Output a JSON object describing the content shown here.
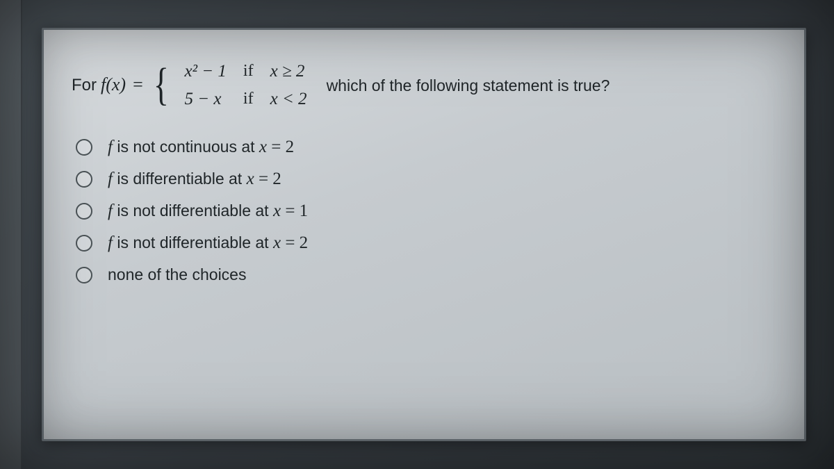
{
  "question": {
    "for_label": "For",
    "func": "f(x)",
    "equals": "=",
    "pieces": [
      {
        "expr": "x² − 1",
        "if": "if",
        "cond": "x ≥ 2"
      },
      {
        "expr": "5 − x",
        "if": "if",
        "cond": "x < 2"
      }
    ],
    "tail": "which of the following statement is true?"
  },
  "options": [
    {
      "prefix": "f",
      "text": " is not continuous at ",
      "var": "x",
      "eq": " = 2"
    },
    {
      "prefix": "f",
      "text": " is differentiable at ",
      "var": "x",
      "eq": " = 2"
    },
    {
      "prefix": "f",
      "text": " is not differentiable at ",
      "var": "x",
      "eq": " = 1"
    },
    {
      "prefix": "f",
      "text": " is not differentiable at ",
      "var": "x",
      "eq": " = 2"
    },
    {
      "prefix": "",
      "text": "none of the choices",
      "var": "",
      "eq": ""
    }
  ],
  "colors": {
    "panel_bg_start": "#d7dbde",
    "panel_bg_end": "#b9bfc3",
    "panel_border": "#6a7278",
    "text": "#1f2528",
    "outer_bg": "#3a4046",
    "radio_border": "#4a5256"
  }
}
